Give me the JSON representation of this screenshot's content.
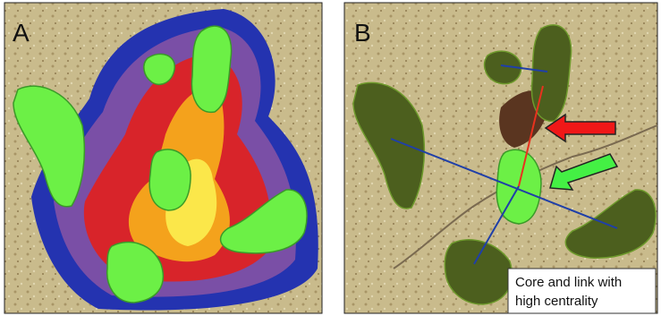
{
  "panels": [
    {
      "label": "A"
    },
    {
      "label": "B",
      "caption": [
        "Core and link with",
        "high centrality"
      ]
    }
  ]
}
